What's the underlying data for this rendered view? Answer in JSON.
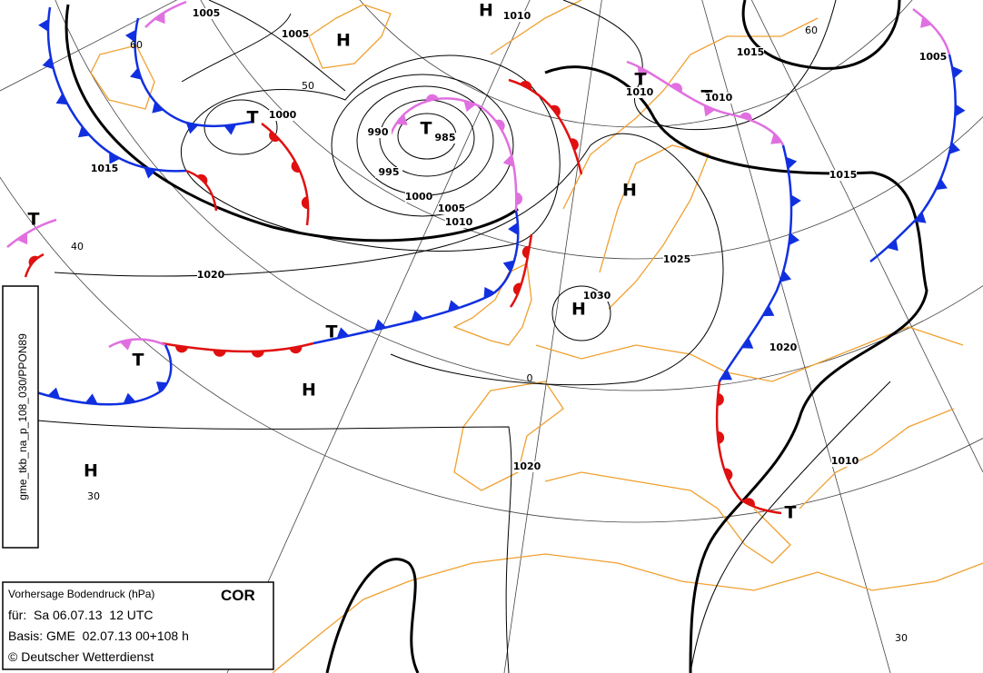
{
  "info_box": {
    "title": "Vorhersage Bodendruck (hPa)",
    "flag": "COR",
    "valid": "für:  Sa 06.07.13  12 UTC",
    "base": "Basis: GME  02.07.13 00+108 h",
    "copyright": "© Deutscher Wetterdienst"
  },
  "product_id": "gme_tkb_na_p_108_030/PPON89",
  "centers": [
    "H",
    "H",
    "T",
    "T",
    "T",
    "T",
    "H",
    "H",
    "T",
    "T",
    "T",
    "H",
    "H",
    "T"
  ],
  "isobar_labels": [
    1005,
    1005,
    1010,
    1000,
    990,
    985,
    995,
    1000,
    1005,
    1010,
    1015,
    1020,
    1010,
    1010,
    1015,
    1005,
    1015,
    1025,
    1030,
    1020,
    1020,
    1010
  ],
  "graticule_labels": [
    "60",
    "50",
    "40",
    "30",
    "60",
    "0",
    "30"
  ]
}
